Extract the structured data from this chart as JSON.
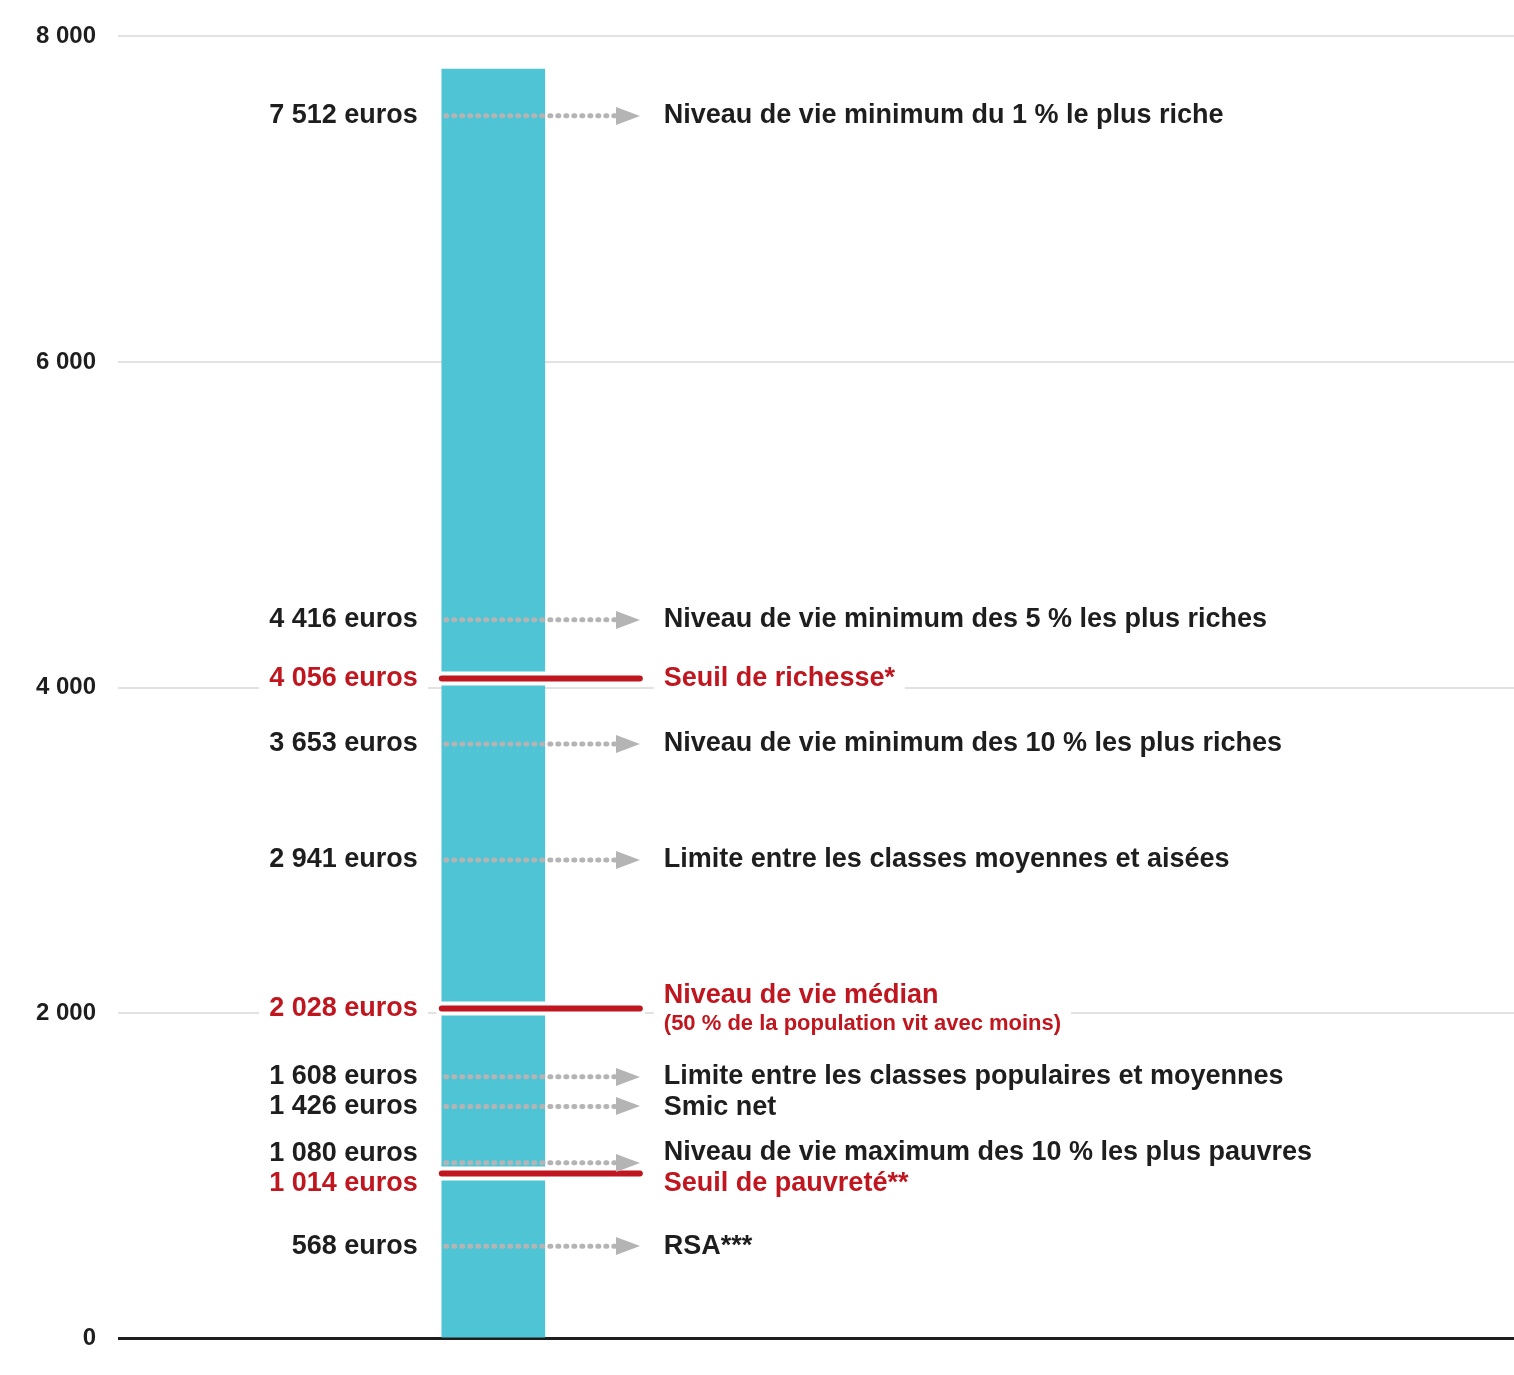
{
  "chart_data": {
    "type": "bar",
    "categories": [
      null
    ],
    "values": [
      7800
    ],
    "color": "#4fc4d4",
    "ylim": [
      0,
      8000
    ],
    "yticks": [
      {
        "value": 0,
        "label": "0"
      },
      {
        "value": 2000,
        "label": "2 000"
      },
      {
        "value": 4000,
        "label": "4 000"
      },
      {
        "value": 6000,
        "label": "6 000"
      },
      {
        "value": 8000,
        "label": "8 000"
      }
    ],
    "grid": "y",
    "ref_lines": [
      {
        "axis": "y",
        "value": 7512,
        "label": "Niveau de vie minimum du 1 % le plus riche",
        "color": "#b4b4b4",
        "line_style": "dotted"
      },
      {
        "axis": "y",
        "value": 4416,
        "label": "Niveau de vie minimum des 5 % les plus riches",
        "color": "#b4b4b4",
        "line_style": "dotted"
      },
      {
        "axis": "y",
        "value": 4056,
        "label": "Seuil de richesse*",
        "color": "#c0161f",
        "line_style": "solid"
      },
      {
        "axis": "y",
        "value": 3653,
        "label": "Niveau de vie minimum des 10 % les plus riches",
        "color": "#b4b4b4",
        "line_style": "dotted"
      },
      {
        "axis": "y",
        "value": 2941,
        "label": "Limite entre les classes moyennes et aisées",
        "color": "#b4b4b4",
        "line_style": "dotted"
      },
      {
        "axis": "y",
        "value": 2028,
        "label": "Niveau de vie médian\n(50 % de la population vit avec moins)",
        "color": "#c0161f",
        "line_style": "solid"
      },
      {
        "axis": "y",
        "value": 1608,
        "label": "Limite entre les classes populaires et moyennes",
        "color": "#b4b4b4",
        "line_style": "dotted"
      },
      {
        "axis": "y",
        "value": 1426,
        "label": "Smic net",
        "color": "#b4b4b4",
        "line_style": "dotted"
      },
      {
        "axis": "y",
        "value": 1080,
        "label": "Niveau de vie maximum des 10 % les plus pauvres",
        "color": "#b4b4b4",
        "line_style": "dotted"
      },
      {
        "axis": "y",
        "value": 1014,
        "label": "Seuil de pauvreté**",
        "color": "#c0161f",
        "line_style": "solid"
      },
      {
        "axis": "y",
        "value": 568,
        "label": "RSA***",
        "color": "#b4b4b4",
        "line_style": "dotted"
      }
    ],
    "annotations": [
      "7 512 euros",
      "4 416 euros",
      "4 056 euros",
      "3 653 euros",
      "2 941 euros",
      "2 028 euros",
      "1 608 euros",
      "1 426 euros",
      "1 080 euros",
      "1 014 euros",
      "568 euros"
    ]
  }
}
